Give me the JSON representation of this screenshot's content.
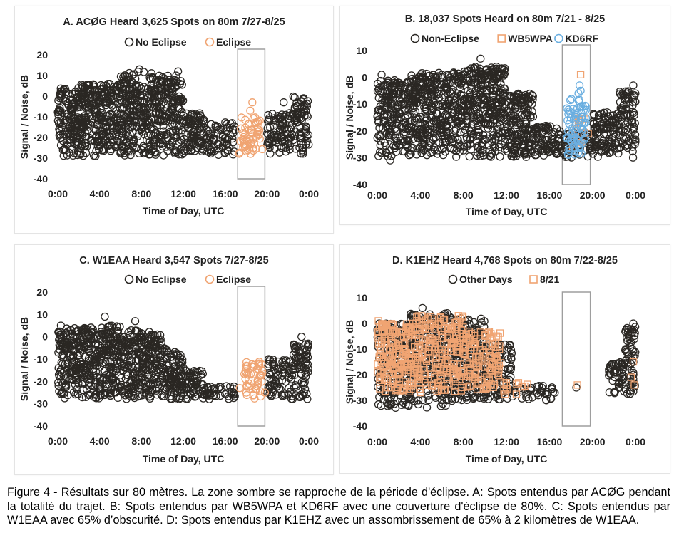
{
  "caption": "Figure 4 - Résultats sur 80 mètres. La zone sombre se rapproche de la période d'éclipse. A: Spots entendus par ACØG pendant la totalité du trajet. B: Spots entendus par WB5WPA et KD6RF avec une couverture d'éclipse de 80%. C: Spots entendus par W1EAA avec 65% d’obscurité. D: Spots entendus par K1EHZ avec un assombrissement de 65% à 2 kilomètres de W1EAA.",
  "colors": {
    "dark_marker": "#2a2723",
    "orange_marker": "#f0a472",
    "blue_marker": "#6aaee0",
    "box": "#9e9e9e",
    "text": "#222222"
  },
  "chart_data": [
    {
      "id": "A",
      "type": "scatter",
      "title": "A. ACØG Heard 3,625 Spots on 80m 7/27-8/25",
      "xlabel": "Time of Day, UTC",
      "ylabel": "Signal / Noise, dB",
      "x_ticks": [
        "0:00",
        "4:00",
        "8:00",
        "12:00",
        "16:00",
        "20:00",
        "0:00"
      ],
      "x_range_hours": [
        0,
        24
      ],
      "ylim": [
        -40,
        20
      ],
      "y_ticks": [
        20,
        10,
        0,
        -10,
        -20,
        -30,
        -40
      ],
      "grid": false,
      "legend": "top",
      "eclipse_window_hours": [
        17.2,
        19.8
      ],
      "series": [
        {
          "name": "No Eclipse",
          "marker": "circle",
          "color": "#2a2723",
          "clusters": [
            {
              "x": [
                0,
                2
              ],
              "y": [
                -29,
                4
              ],
              "n": 140
            },
            {
              "x": [
                2,
                6
              ],
              "y": [
                -29,
                6
              ],
              "n": 300
            },
            {
              "x": [
                6,
                9
              ],
              "y": [
                -29,
                12
              ],
              "n": 230
            },
            {
              "x": [
                9,
                12
              ],
              "y": [
                -29,
                10
              ],
              "n": 210
            },
            {
              "x": [
                12,
                14
              ],
              "y": [
                -29,
                -8
              ],
              "n": 90
            },
            {
              "x": [
                14,
                17
              ],
              "y": [
                -29,
                -12
              ],
              "n": 70
            },
            {
              "x": [
                20,
                22.5
              ],
              "y": [
                -28,
                -8
              ],
              "n": 90
            },
            {
              "x": [
                22.5,
                24
              ],
              "y": [
                -28,
                0
              ],
              "n": 70
            }
          ],
          "points": [
            [
              7.8,
              13
            ],
            [
              11.5,
              12
            ],
            [
              8.8,
              9
            ],
            [
              4.8,
              6
            ],
            [
              21.6,
              -3
            ],
            [
              23.5,
              -1
            ],
            [
              16.2,
              -21
            ],
            [
              13.2,
              -12
            ]
          ]
        },
        {
          "name": "Eclipse",
          "marker": "circle",
          "color": "#f0a472",
          "clusters": [
            {
              "x": [
                17.3,
                19.6
              ],
              "y": [
                -28,
                -10
              ],
              "n": 55
            }
          ],
          "points": [
            [
              18.6,
              -3
            ],
            [
              18.4,
              -7
            ],
            [
              17.8,
              -22
            ],
            [
              19.2,
              -15
            ]
          ]
        }
      ]
    },
    {
      "id": "B",
      "type": "scatter",
      "title": "B. 18,037 Spots Heard on 80m 7/21 - 8/25",
      "xlabel": "Time of Day, UTC",
      "ylabel": "Signal / Noise, dB",
      "x_ticks": [
        "0:00",
        "4:00",
        "8:00",
        "12:00",
        "16:00",
        "20:00",
        "0:00"
      ],
      "x_range_hours": [
        0,
        24
      ],
      "ylim": [
        -40,
        10
      ],
      "y_ticks": [
        10,
        0,
        -10,
        -20,
        -30,
        -40
      ],
      "grid": false,
      "legend": "top",
      "eclipse_window_hours": [
        17.2,
        19.8
      ],
      "series": [
        {
          "name": "Non-Eclipse",
          "marker": "circle",
          "color": "#2a2723",
          "clusters": [
            {
              "x": [
                0,
                3
              ],
              "y": [
                -30,
                -1
              ],
              "n": 200
            },
            {
              "x": [
                3,
                8
              ],
              "y": [
                -30,
                2
              ],
              "n": 380
            },
            {
              "x": [
                8,
                12
              ],
              "y": [
                -30,
                4
              ],
              "n": 330
            },
            {
              "x": [
                12,
                14.5
              ],
              "y": [
                -30,
                -6
              ],
              "n": 170
            },
            {
              "x": [
                14.5,
                17
              ],
              "y": [
                -30,
                -18
              ],
              "n": 80
            },
            {
              "x": [
                17,
                20
              ],
              "y": [
                -30,
                -20
              ],
              "n": 60
            },
            {
              "x": [
                20,
                22.5
              ],
              "y": [
                -30,
                -13
              ],
              "n": 110
            },
            {
              "x": [
                22.5,
                24
              ],
              "y": [
                -30,
                -5
              ],
              "n": 80
            }
          ],
          "points": [
            [
              9.6,
              7
            ],
            [
              0.4,
              1
            ],
            [
              23.8,
              -3
            ],
            [
              1.2,
              -31
            ]
          ]
        },
        {
          "name": "WB5WPA",
          "marker": "square",
          "color": "#f0a472",
          "clusters": [
            {
              "x": [
                18.0,
                19.5
              ],
              "y": [
                -27,
                -15
              ],
              "n": 14
            }
          ],
          "points": [
            [
              18.9,
              1
            ],
            [
              19.6,
              -21
            ]
          ]
        },
        {
          "name": "KD6RF",
          "marker": "circle",
          "color": "#6aaee0",
          "clusters": [
            {
              "x": [
                17.6,
                19.4
              ],
              "y": [
                -29,
                -8
              ],
              "n": 75
            }
          ],
          "points": [
            [
              18.8,
              -3
            ],
            [
              18.9,
              -5
            ],
            [
              18.7,
              -6
            ]
          ]
        }
      ]
    },
    {
      "id": "C",
      "type": "scatter",
      "title": "C. W1EAA Heard 3,547 Spots 7/27-8/25",
      "xlabel": "Time of Day, UTC",
      "ylabel": "Signal / Noise, dB",
      "x_ticks": [
        "0:00",
        "4:00",
        "8:00",
        "12:00",
        "16:00",
        "20:00",
        "0:00"
      ],
      "x_range_hours": [
        0,
        24
      ],
      "ylim": [
        -40,
        20
      ],
      "y_ticks": [
        20,
        10,
        0,
        -10,
        -20,
        -30,
        -40
      ],
      "grid": false,
      "legend": "top",
      "eclipse_window_hours": [
        17.2,
        19.8
      ],
      "series": [
        {
          "name": "No Eclipse",
          "marker": "circle",
          "color": "#2a2723",
          "clusters": [
            {
              "x": [
                0,
                3
              ],
              "y": [
                -28,
                4
              ],
              "n": 220
            },
            {
              "x": [
                3,
                6
              ],
              "y": [
                -28,
                5
              ],
              "n": 220
            },
            {
              "x": [
                6,
                10
              ],
              "y": [
                -28,
                3
              ],
              "n": 270
            },
            {
              "x": [
                10,
                12
              ],
              "y": [
                -28,
                -5
              ],
              "n": 110
            },
            {
              "x": [
                12,
                14
              ],
              "y": [
                -28,
                -15
              ],
              "n": 60
            },
            {
              "x": [
                14,
                17
              ],
              "y": [
                -28,
                -22
              ],
              "n": 40
            },
            {
              "x": [
                20,
                22.5
              ],
              "y": [
                -28,
                -10
              ],
              "n": 80
            },
            {
              "x": [
                22.5,
                24
              ],
              "y": [
                -28,
                -3
              ],
              "n": 70
            }
          ],
          "points": [
            [
              4.5,
              9
            ],
            [
              7.4,
              7
            ],
            [
              0.3,
              5
            ],
            [
              23.3,
              0
            ]
          ]
        },
        {
          "name": "Eclipse",
          "marker": "circle",
          "color": "#f0a472",
          "clusters": [
            {
              "x": [
                17.8,
                19.6
              ],
              "y": [
                -28,
                -11
              ],
              "n": 50
            }
          ],
          "points": [
            [
              17.4,
              -23
            ],
            [
              19.8,
              -25
            ]
          ]
        }
      ]
    },
    {
      "id": "D",
      "type": "scatter",
      "title": "D. K1EHZ Heard 4,768 Spots on 80m 7/22-8/25",
      "xlabel": "Time of Day, UTC",
      "ylabel": "Signal / Noise, dB",
      "x_ticks": [
        "0:00",
        "4:00",
        "8:00",
        "12:00",
        "16:00",
        "20:00",
        "0:00"
      ],
      "x_range_hours": [
        0,
        24
      ],
      "ylim": [
        -40,
        10
      ],
      "y_ticks": [
        10,
        0,
        -10,
        -20,
        -30,
        -40
      ],
      "grid": false,
      "legend": "top",
      "eclipse_window_hours": [
        17.2,
        19.8
      ],
      "series": [
        {
          "name": "Other Days",
          "marker": "circle",
          "color": "#2a2723",
          "clusters": [
            {
              "x": [
                0,
                3
              ],
              "y": [
                -33,
                0
              ],
              "n": 200
            },
            {
              "x": [
                3,
                7
              ],
              "y": [
                -33,
                4
              ],
              "n": 280
            },
            {
              "x": [
                7,
                10
              ],
              "y": [
                -30,
                2
              ],
              "n": 210
            },
            {
              "x": [
                10,
                12.5
              ],
              "y": [
                -30,
                -8
              ],
              "n": 110
            },
            {
              "x": [
                12.5,
                16.5
              ],
              "y": [
                -30,
                -24
              ],
              "n": 35
            },
            {
              "x": [
                21.5,
                23
              ],
              "y": [
                -28,
                -15
              ],
              "n": 50
            },
            {
              "x": [
                23,
                24
              ],
              "y": [
                -28,
                -1
              ],
              "n": 60
            }
          ],
          "points": [
            [
              4.2,
              6
            ],
            [
              6.5,
              4
            ],
            [
              16.5,
              -27
            ],
            [
              18.5,
              -25
            ],
            [
              23.8,
              0
            ]
          ]
        },
        {
          "name": "8/21",
          "marker": "square",
          "color": "#f0a472",
          "clusters": [
            {
              "x": [
                0,
                3
              ],
              "y": [
                -27,
                0
              ],
              "n": 160
            },
            {
              "x": [
                3,
                8
              ],
              "y": [
                -27,
                3
              ],
              "n": 220
            },
            {
              "x": [
                8,
                11.5
              ],
              "y": [
                -26,
                -3
              ],
              "n": 120
            },
            {
              "x": [
                11.5,
                14
              ],
              "y": [
                -28,
                -22
              ],
              "n": 12
            }
          ],
          "points": [
            [
              0.1,
              1
            ],
            [
              18.6,
              -24
            ],
            [
              23.8,
              -15
            ],
            [
              23.6,
              -21
            ],
            [
              23.9,
              -24
            ]
          ]
        }
      ]
    }
  ]
}
